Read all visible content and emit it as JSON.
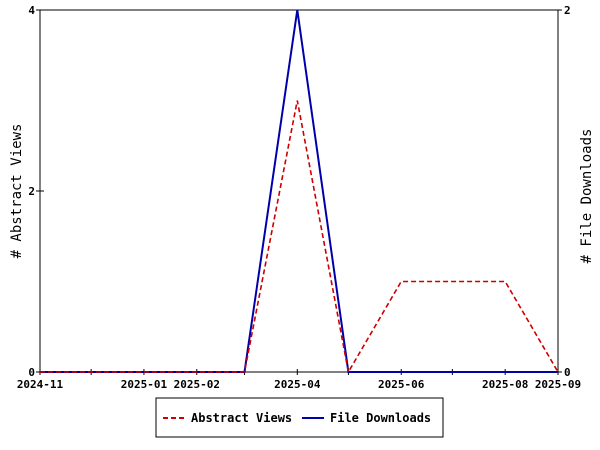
{
  "chart_data": {
    "type": "line",
    "x": [
      "2024-11",
      "2024-12",
      "2025-01",
      "2025-02",
      "2025-03",
      "2025-04",
      "2025-05",
      "2025-06",
      "2025-07",
      "2025-08",
      "2025-09"
    ],
    "x_tick_labels": [
      "2024-11",
      "2025-01",
      "2025-02",
      "2025-04",
      "2025-06",
      "2025-08",
      "2025-09"
    ],
    "series": [
      {
        "name": "Abstract Views",
        "axis": "left",
        "color": "#cc0000",
        "style": "dashed",
        "values": [
          0,
          0,
          0,
          0,
          0,
          3,
          0,
          1,
          1,
          1,
          0
        ]
      },
      {
        "name": "File Downloads",
        "axis": "right",
        "color": "#0000aa",
        "style": "solid",
        "values": [
          0,
          0,
          0,
          0,
          0,
          2,
          0,
          0,
          0,
          0,
          0
        ]
      }
    ],
    "y_left": {
      "label": "# Abstract Views",
      "ylim": [
        0,
        4
      ],
      "ticks": [
        "0",
        "2",
        "4"
      ]
    },
    "y_right": {
      "label": "# File Downloads",
      "ylim": [
        0,
        2
      ],
      "ticks": [
        "0",
        "2"
      ]
    },
    "legend_position": "bottom",
    "grid": false
  }
}
